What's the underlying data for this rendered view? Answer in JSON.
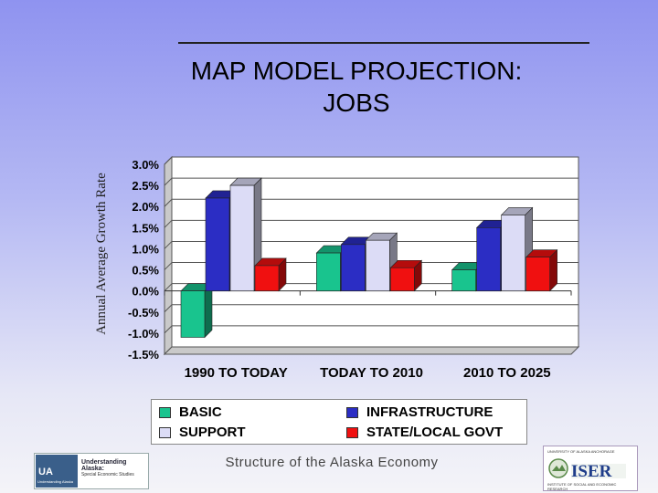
{
  "slide": {
    "title_line1": "MAP MODEL PROJECTION:",
    "title_line2": "JOBS",
    "footer_text": "Structure of the Alaska Economy"
  },
  "logos": {
    "left_mark": "UA",
    "left_mark_sub": "Understanding Alaska",
    "left_title": "Understanding Alaska:",
    "left_subtitle": "Special Economic Studies",
    "right_top": "UNIVERSITY OF ALASKA ANCHORAGE",
    "right_name": "ISER",
    "right_bottom": "INSTITUTE OF SOCIAL AND ECONOMIC RESEARCH"
  },
  "chart_data": {
    "type": "bar",
    "style": "3d-clustered",
    "categories": [
      "1990 TO TODAY",
      "TODAY TO 2010",
      "2010 TO 2025"
    ],
    "series": [
      {
        "name": "BASIC",
        "color": "#19c48e",
        "values": [
          -1.1,
          0.9,
          0.5
        ]
      },
      {
        "name": "INFRASTRUCTURE",
        "color": "#2b2dc4",
        "values": [
          2.2,
          1.1,
          1.5
        ]
      },
      {
        "name": "SUPPORT",
        "color": "#dcdcf6",
        "values": [
          2.5,
          1.2,
          1.8
        ]
      },
      {
        "name": "STATE/LOCAL GOVT",
        "color": "#f01010",
        "values": [
          0.6,
          0.55,
          0.8
        ]
      }
    ],
    "ylabel": "Annual Average Growth Rate",
    "ylim": [
      -1.5,
      3.0
    ],
    "yticks": [
      "3.0%",
      "2.5%",
      "2.0%",
      "1.5%",
      "1.0%",
      "0.5%",
      "0.0%",
      "-0.5%",
      "-1.0%",
      "-1.5%"
    ],
    "grid": true,
    "legend_position": "bottom"
  }
}
